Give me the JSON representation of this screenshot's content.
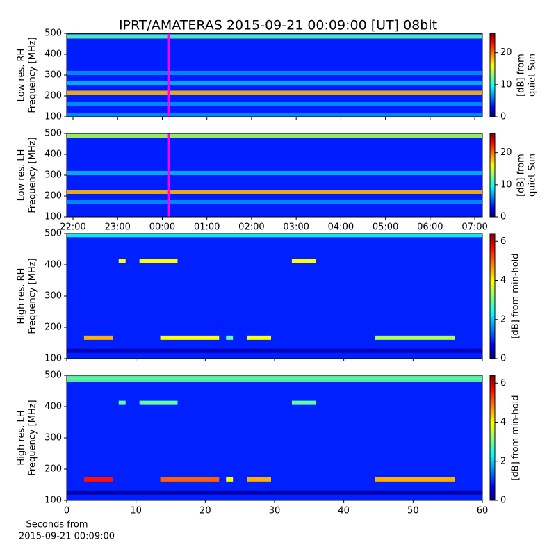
{
  "chart_data": [
    {
      "type": "heatmap",
      "title": "IPRT/AMATERAS 2015-09-21 00:09:00 [UT]   08bit",
      "ylabel": [
        "Low res. RH",
        "Frequency [MHz]"
      ],
      "xlim": [
        21.86,
        31.17
      ],
      "xticks": [
        {
          "value": 22,
          "label": "22:00"
        },
        {
          "value": 23,
          "label": "23:00"
        },
        {
          "value": 24,
          "label": "00:00"
        },
        {
          "value": 25,
          "label": "01:00"
        },
        {
          "value": 26,
          "label": "02:00"
        },
        {
          "value": 27,
          "label": "03:00"
        },
        {
          "value": 28,
          "label": "04:00"
        },
        {
          "value": 29,
          "label": "05:00"
        },
        {
          "value": 30,
          "label": "06:00"
        },
        {
          "value": 31,
          "label": "07:00"
        }
      ],
      "show_xticklabels": false,
      "ylim": [
        100,
        500
      ],
      "yticks": [
        100,
        200,
        300,
        400,
        500
      ],
      "clim": [
        0,
        26
      ],
      "cticks": [
        0,
        10,
        20
      ],
      "clabel": [
        "[dB] from",
        "quiet Sun"
      ],
      "background_value": 4,
      "marker_x": 24.15,
      "marker_color": "#ff00ff",
      "bands": [
        {
          "y": 215,
          "value": 18
        },
        {
          "y": 485,
          "value": 12
        },
        {
          "y": 260,
          "value": 8
        },
        {
          "y": 310,
          "value": 7
        },
        {
          "y": 160,
          "value": 7
        },
        {
          "y": 110,
          "value": 7
        }
      ],
      "bursts": []
    },
    {
      "type": "heatmap",
      "ylabel": [
        "Low res. LH",
        "Frequency [MHz]"
      ],
      "xlim": [
        21.86,
        31.17
      ],
      "xticks": [
        {
          "value": 22,
          "label": "22:00"
        },
        {
          "value": 23,
          "label": "23:00"
        },
        {
          "value": 24,
          "label": "00:00"
        },
        {
          "value": 25,
          "label": "01:00"
        },
        {
          "value": 26,
          "label": "02:00"
        },
        {
          "value": 27,
          "label": "03:00"
        },
        {
          "value": 28,
          "label": "04:00"
        },
        {
          "value": 29,
          "label": "05:00"
        },
        {
          "value": 30,
          "label": "06:00"
        },
        {
          "value": 31,
          "label": "07:00"
        }
      ],
      "show_xticklabels": true,
      "ylim": [
        100,
        500
      ],
      "yticks": [
        100,
        200,
        300,
        400,
        500
      ],
      "clim": [
        0,
        26
      ],
      "cticks": [
        0,
        10,
        20
      ],
      "clabel": [
        "[dB] from",
        "quiet Sun"
      ],
      "background_value": 4,
      "marker_x": 24.15,
      "marker_color": "#ff00ff",
      "bands": [
        {
          "y": 220,
          "value": 18
        },
        {
          "y": 488,
          "value": 14
        },
        {
          "y": 310,
          "value": 8
        },
        {
          "y": 170,
          "value": 7
        }
      ],
      "bursts": []
    },
    {
      "type": "heatmap",
      "ylabel": [
        "High res. RH",
        "Frequency [MHz]"
      ],
      "xlim": [
        0,
        60
      ],
      "xticks": [
        0,
        10,
        20,
        30,
        40,
        50,
        60
      ],
      "show_xticklabels": false,
      "ylim": [
        100,
        500
      ],
      "yticks": [
        100,
        200,
        300,
        400,
        500
      ],
      "clim": [
        0,
        6.4
      ],
      "cticks": [
        0,
        2,
        4,
        6
      ],
      "clabel": [
        "[dB] from min-hold"
      ],
      "background_value": 1,
      "bands": [
        {
          "y": 495,
          "value": 2.5
        },
        {
          "y": 125,
          "value": 0.3
        }
      ],
      "bursts": [
        {
          "x": [
            2.5,
            6.7
          ],
          "y": 167,
          "value": 4.5
        },
        {
          "x": [
            13.5,
            22
          ],
          "y": 167,
          "value": 4
        },
        {
          "x": [
            23,
            24
          ],
          "y": 167,
          "value": 3
        },
        {
          "x": [
            26,
            29.5
          ],
          "y": 167,
          "value": 4
        },
        {
          "x": [
            44.5,
            56
          ],
          "y": 167,
          "value": 3.5
        },
        {
          "x": [
            7.5,
            8.5
          ],
          "y": 412,
          "value": 4
        },
        {
          "x": [
            10.5,
            16
          ],
          "y": 412,
          "value": 4
        },
        {
          "x": [
            32.5,
            36
          ],
          "y": 412,
          "value": 4
        }
      ]
    },
    {
      "type": "heatmap",
      "ylabel": [
        "High res. LH",
        "Frequency [MHz]"
      ],
      "xlim": [
        0,
        60
      ],
      "xticks": [
        0,
        10,
        20,
        30,
        40,
        50,
        60
      ],
      "show_xticklabels": true,
      "xlabel": [
        "Seconds from",
        "2015-09-21 00:09:00"
      ],
      "ylim": [
        100,
        500
      ],
      "yticks": [
        100,
        200,
        300,
        400,
        500
      ],
      "clim": [
        0,
        6.4
      ],
      "cticks": [
        0,
        2,
        4,
        6
      ],
      "clabel": [
        "[dB] from min-hold"
      ],
      "background_value": 1,
      "bands": [
        {
          "y": 495,
          "value": 3
        },
        {
          "y": 485,
          "value": 3
        },
        {
          "y": 125,
          "value": 0.2
        }
      ],
      "bursts": [
        {
          "x": [
            2.5,
            6.7
          ],
          "y": 167,
          "value": 5.5
        },
        {
          "x": [
            13.5,
            22
          ],
          "y": 167,
          "value": 5
        },
        {
          "x": [
            23,
            24
          ],
          "y": 167,
          "value": 4
        },
        {
          "x": [
            26,
            29.5
          ],
          "y": 167,
          "value": 4.5
        },
        {
          "x": [
            44.5,
            56
          ],
          "y": 167,
          "value": 4.5
        },
        {
          "x": [
            7.5,
            8.5
          ],
          "y": 412,
          "value": 3
        },
        {
          "x": [
            10.5,
            16
          ],
          "y": 412,
          "value": 3
        },
        {
          "x": [
            32.5,
            36
          ],
          "y": 412,
          "value": 3
        }
      ]
    }
  ]
}
